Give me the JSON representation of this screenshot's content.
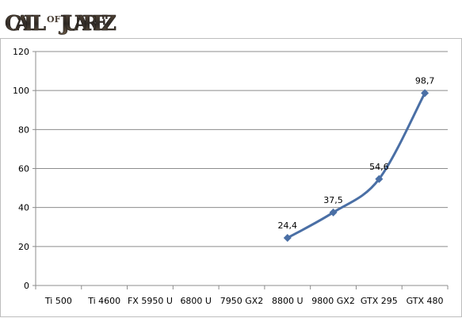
{
  "logo": {
    "text": "CALL OF JUAREZ",
    "word1": "CALL",
    "word_of": "OF",
    "word2": "JUAREZ"
  },
  "chart_data": {
    "type": "line",
    "title": "",
    "xlabel": "",
    "ylabel": "",
    "categories": [
      "Ti 500",
      "Ti 4600",
      "FX 5950 U",
      "6800 U",
      "7950 GX2",
      "8800 U",
      "9800 GX2",
      "GTX 295",
      "GTX 480"
    ],
    "series": [
      {
        "values": [
          null,
          null,
          null,
          null,
          null,
          24.4,
          37.5,
          54.6,
          98.7
        ],
        "labels": [
          null,
          null,
          null,
          null,
          null,
          "24,4",
          "37,5",
          "54,6",
          "98,7"
        ]
      }
    ],
    "ylim": [
      0,
      120
    ],
    "yticks": [
      0,
      20,
      40,
      60,
      80,
      100,
      120
    ],
    "grid": "horizontal",
    "legend": "none",
    "colors": {
      "line": "#4a6fa5",
      "grid": "#8c8c8c",
      "axis": "#8c8c8c"
    }
  }
}
